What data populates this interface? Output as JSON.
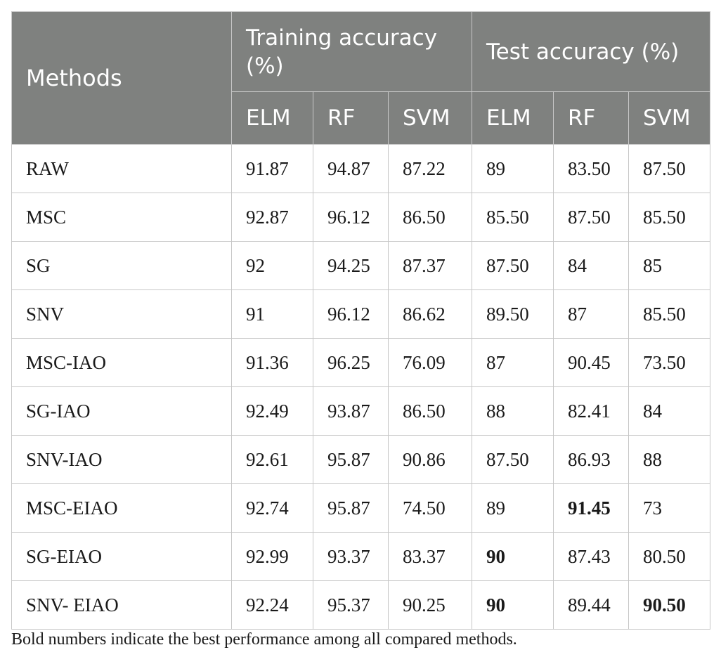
{
  "table": {
    "header": {
      "methods": "Methods",
      "training_group": "Training accuracy (%)",
      "test_group": "Test accuracy (%)",
      "sub": [
        "ELM",
        "RF",
        "SVM",
        "ELM",
        "RF",
        "SVM"
      ]
    },
    "rows": [
      {
        "method": "RAW",
        "values": [
          "91.87",
          "94.87",
          "87.22",
          "89",
          "83.50",
          "87.50"
        ],
        "bold": [
          false,
          false,
          false,
          false,
          false,
          false
        ]
      },
      {
        "method": "MSC",
        "values": [
          "92.87",
          "96.12",
          "86.50",
          "85.50",
          "87.50",
          "85.50"
        ],
        "bold": [
          false,
          false,
          false,
          false,
          false,
          false
        ]
      },
      {
        "method": "SG",
        "values": [
          "92",
          "94.25",
          "87.37",
          "87.50",
          "84",
          "85"
        ],
        "bold": [
          false,
          false,
          false,
          false,
          false,
          false
        ]
      },
      {
        "method": "SNV",
        "values": [
          "91",
          "96.12",
          "86.62",
          "89.50",
          "87",
          "85.50"
        ],
        "bold": [
          false,
          false,
          false,
          false,
          false,
          false
        ]
      },
      {
        "method": "MSC-IAO",
        "values": [
          "91.36",
          "96.25",
          "76.09",
          "87",
          "90.45",
          "73.50"
        ],
        "bold": [
          false,
          false,
          false,
          false,
          false,
          false
        ]
      },
      {
        "method": "SG-IAO",
        "values": [
          "92.49",
          "93.87",
          "86.50",
          "88",
          "82.41",
          "84"
        ],
        "bold": [
          false,
          false,
          false,
          false,
          false,
          false
        ]
      },
      {
        "method": "SNV-IAO",
        "values": [
          "92.61",
          "95.87",
          "90.86",
          "87.50",
          "86.93",
          "88"
        ],
        "bold": [
          false,
          false,
          false,
          false,
          false,
          false
        ]
      },
      {
        "method": "MSC-EIAO",
        "values": [
          "92.74",
          "95.87",
          "74.50",
          "89",
          "91.45",
          "73"
        ],
        "bold": [
          false,
          false,
          false,
          false,
          true,
          false
        ]
      },
      {
        "method": "SG-EIAO",
        "values": [
          "92.99",
          "93.37",
          "83.37",
          "90",
          "87.43",
          "80.50"
        ],
        "bold": [
          false,
          false,
          false,
          true,
          false,
          false
        ]
      },
      {
        "method": "SNV- EIAO",
        "values": [
          "92.24",
          "95.37",
          "90.25",
          "90",
          "89.44",
          "90.50"
        ],
        "bold": [
          false,
          false,
          false,
          true,
          false,
          true
        ]
      }
    ]
  },
  "footnote": "Bold numbers indicate the best performance among all compared methods."
}
